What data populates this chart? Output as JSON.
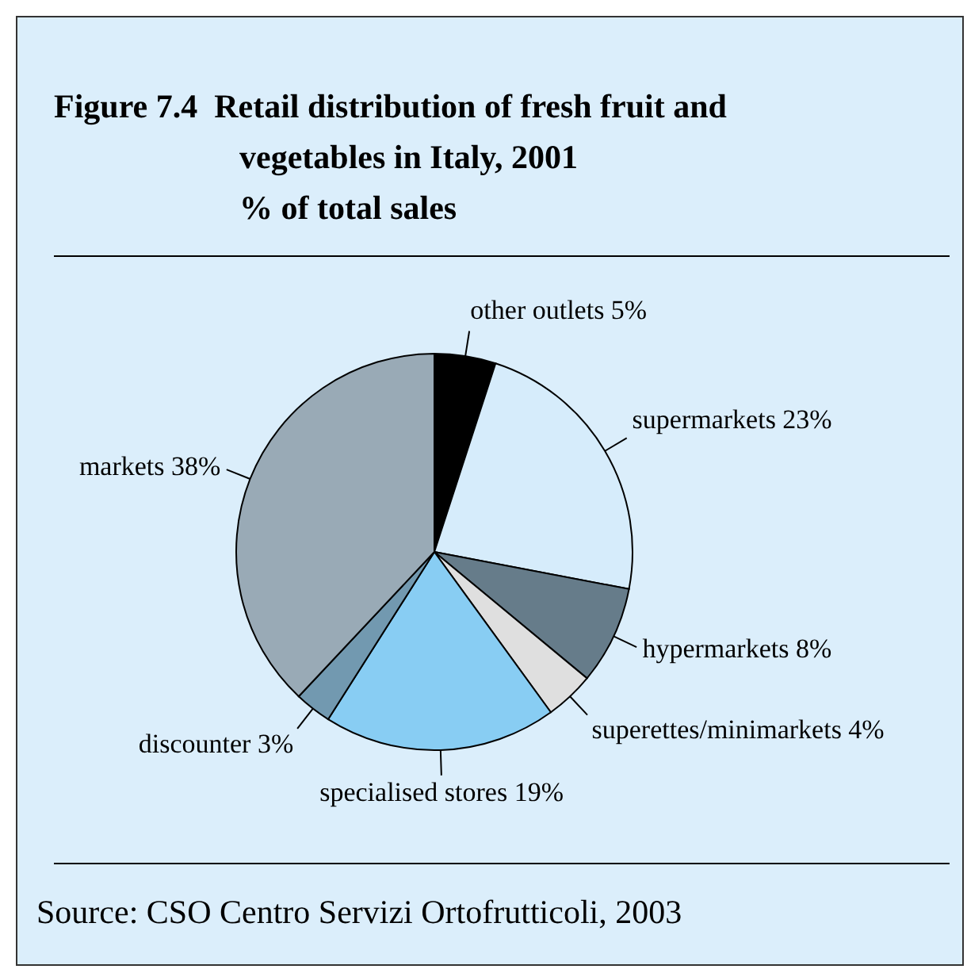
{
  "chart_data": {
    "type": "pie",
    "title": "Figure 7.4  Retail distribution of fresh fruit and vegetables in Italy, 2001",
    "subtitle": "% of total sales",
    "categories": [
      "other outlets",
      "supermarkets",
      "hypermarkets",
      "superettes/minimarkets",
      "specialised stores",
      "discounter",
      "markets"
    ],
    "values": [
      5,
      23,
      8,
      4,
      19,
      3,
      38
    ],
    "value_labels": [
      "5%",
      "23%",
      "8%",
      "4%",
      "19%",
      "3%",
      "38%"
    ],
    "colors": [
      "#000000",
      "#d6ecfb",
      "#667c8a",
      "#dfdfdf",
      "#88cdf3",
      "#7299b0",
      "#99aab6"
    ],
    "annotations": [
      "Source: CSO Centro Servizi Ortofrutticoli, 2003"
    ]
  }
}
